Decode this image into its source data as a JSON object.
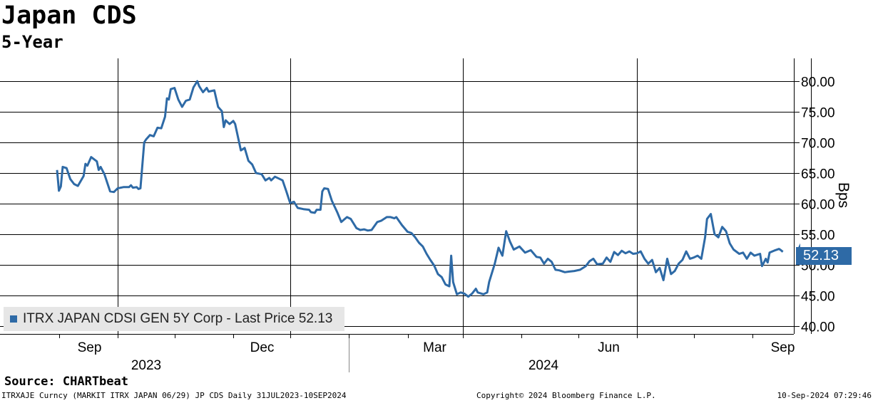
{
  "header": {
    "title": "Japan CDS",
    "subtitle": "5-Year"
  },
  "legend": {
    "text": "ITRX JAPAN CDSI GEN 5Y Corp - Last Price 52.13",
    "color": "#2e6aa6"
  },
  "last_price_label": "52.13",
  "source": "Source: CHARTbeat",
  "footer": {
    "left": "ITRXAJE Curncy (MARKIT ITRX JAPAN 06/29) JP CDS  Daily 31JUL2023-10SEP2024",
    "center": "Copyright© 2024 Bloomberg Finance L.P.",
    "right": "10-Sep-2024 07:29:46"
  },
  "chart_data": {
    "type": "line",
    "title": "Japan CDS",
    "subtitle": "5-Year",
    "ylabel": "Bps",
    "xlabel": "",
    "ylim": [
      39,
      83
    ],
    "yticks": [
      "80.00",
      "75.00",
      "70.00",
      "65.00",
      "60.00",
      "55.00",
      "50.00",
      "45.00",
      "40.00"
    ],
    "ytick_values": [
      80,
      75,
      70,
      65,
      60,
      55,
      50,
      45,
      40
    ],
    "xlim": [
      "2023-07-31",
      "2024-09-10"
    ],
    "xticks": [
      {
        "label": "Sep",
        "date": "2023-09-01"
      },
      {
        "label": "Dec",
        "date": "2023-12-01"
      },
      {
        "label": "Mar",
        "date": "2024-03-01"
      },
      {
        "label": "Jun",
        "date": "2024-06-01"
      },
      {
        "label": "Sep",
        "date": "2024-09-01"
      }
    ],
    "year_labels": [
      "2023",
      "2024"
    ],
    "grid": true,
    "legend_position": "bottom-left",
    "line_color": "#2e6aa6",
    "series": [
      {
        "name": "ITRX JAPAN CDSI GEN 5Y Corp - Last Price",
        "last": 52.13,
        "points": [
          [
            "2023-07-31",
            65.5
          ],
          [
            "2023-08-01",
            62.1
          ],
          [
            "2023-08-02",
            62.8
          ],
          [
            "2023-08-03",
            66.0
          ],
          [
            "2023-08-05",
            65.8
          ],
          [
            "2023-08-07",
            64.0
          ],
          [
            "2023-08-09",
            63.2
          ],
          [
            "2023-08-11",
            62.9
          ],
          [
            "2023-08-14",
            64.5
          ],
          [
            "2023-08-15",
            66.5
          ],
          [
            "2023-08-16",
            66.2
          ],
          [
            "2023-08-18",
            67.6
          ],
          [
            "2023-08-21",
            66.9
          ],
          [
            "2023-08-22",
            65.5
          ],
          [
            "2023-08-23",
            66.0
          ],
          [
            "2023-08-25",
            64.8
          ],
          [
            "2023-08-28",
            62.0
          ],
          [
            "2023-08-30",
            61.9
          ],
          [
            "2023-09-01",
            62.5
          ],
          [
            "2023-09-04",
            62.7
          ],
          [
            "2023-09-07",
            62.7
          ],
          [
            "2023-09-08",
            63.0
          ],
          [
            "2023-09-09",
            62.6
          ],
          [
            "2023-09-11",
            62.7
          ],
          [
            "2023-09-12",
            62.4
          ],
          [
            "2023-09-13",
            62.5
          ],
          [
            "2023-09-15",
            70.0
          ],
          [
            "2023-09-16",
            70.5
          ],
          [
            "2023-09-18",
            71.2
          ],
          [
            "2023-09-20",
            71.0
          ],
          [
            "2023-09-22",
            72.4
          ],
          [
            "2023-09-24",
            72.3
          ],
          [
            "2023-09-26",
            74.2
          ],
          [
            "2023-09-27",
            77.2
          ],
          [
            "2023-09-28",
            77.0
          ],
          [
            "2023-09-29",
            78.7
          ],
          [
            "2023-10-01",
            78.9
          ],
          [
            "2023-10-03",
            77.0
          ],
          [
            "2023-10-05",
            75.8
          ],
          [
            "2023-10-07",
            76.8
          ],
          [
            "2023-10-09",
            77.0
          ],
          [
            "2023-10-11",
            79.0
          ],
          [
            "2023-10-13",
            80.0
          ],
          [
            "2023-10-14",
            79.2
          ],
          [
            "2023-10-16",
            78.2
          ],
          [
            "2023-10-18",
            78.9
          ],
          [
            "2023-10-19",
            78.3
          ],
          [
            "2023-10-22",
            78.5
          ],
          [
            "2023-10-24",
            75.8
          ],
          [
            "2023-10-26",
            75.1
          ],
          [
            "2023-10-27",
            72.5
          ],
          [
            "2023-10-28",
            73.6
          ],
          [
            "2023-10-30",
            73.0
          ],
          [
            "2023-11-01",
            73.5
          ],
          [
            "2023-11-02",
            73.0
          ],
          [
            "2023-11-05",
            68.7
          ],
          [
            "2023-11-07",
            69.1
          ],
          [
            "2023-11-09",
            67.0
          ],
          [
            "2023-11-11",
            66.4
          ],
          [
            "2023-11-13",
            65.0
          ],
          [
            "2023-11-16",
            64.8
          ],
          [
            "2023-11-18",
            63.8
          ],
          [
            "2023-11-20",
            64.2
          ],
          [
            "2023-11-21",
            63.8
          ],
          [
            "2023-11-23",
            64.4
          ],
          [
            "2023-11-25",
            64.1
          ],
          [
            "2023-11-27",
            63.8
          ],
          [
            "2023-11-29",
            62.0
          ],
          [
            "2023-12-01",
            60.1
          ],
          [
            "2023-12-03",
            60.3
          ],
          [
            "2023-12-05",
            59.3
          ],
          [
            "2023-12-08",
            59.1
          ],
          [
            "2023-12-11",
            59.0
          ],
          [
            "2023-12-12",
            58.6
          ],
          [
            "2023-12-14",
            58.5
          ],
          [
            "2023-12-15",
            59.0
          ],
          [
            "2023-12-17",
            59.0
          ],
          [
            "2023-12-18",
            62.0
          ],
          [
            "2023-12-19",
            62.5
          ],
          [
            "2023-12-21",
            62.4
          ],
          [
            "2023-12-23",
            60.5
          ],
          [
            "2023-12-26",
            58.5
          ],
          [
            "2023-12-28",
            57.0
          ],
          [
            "2023-12-31",
            57.8
          ],
          [
            "2024-01-02",
            57.5
          ],
          [
            "2024-01-05",
            56.0
          ],
          [
            "2024-01-07",
            55.7
          ],
          [
            "2024-01-09",
            55.8
          ],
          [
            "2024-01-11",
            55.6
          ],
          [
            "2024-01-13",
            55.7
          ],
          [
            "2024-01-16",
            57.0
          ],
          [
            "2024-01-18",
            57.2
          ],
          [
            "2024-01-21",
            57.8
          ],
          [
            "2024-01-23",
            57.8
          ],
          [
            "2024-01-25",
            57.6
          ],
          [
            "2024-01-26",
            57.8
          ],
          [
            "2024-01-29",
            56.5
          ],
          [
            "2024-02-01",
            55.4
          ],
          [
            "2024-02-03",
            55.2
          ],
          [
            "2024-02-05",
            54.5
          ],
          [
            "2024-02-07",
            53.6
          ],
          [
            "2024-02-09",
            53.0
          ],
          [
            "2024-02-11",
            51.8
          ],
          [
            "2024-02-13",
            50.8
          ],
          [
            "2024-02-15",
            49.9
          ],
          [
            "2024-02-17",
            48.5
          ],
          [
            "2024-02-19",
            48.0
          ],
          [
            "2024-02-21",
            46.8
          ],
          [
            "2024-02-23",
            46.5
          ],
          [
            "2024-02-24",
            51.5
          ],
          [
            "2024-02-25",
            47.2
          ],
          [
            "2024-02-27",
            45.2
          ],
          [
            "2024-02-29",
            45.5
          ],
          [
            "2024-03-02",
            45.3
          ],
          [
            "2024-03-04",
            44.8
          ],
          [
            "2024-03-06",
            45.3
          ],
          [
            "2024-03-08",
            46.1
          ],
          [
            "2024-03-09",
            45.5
          ],
          [
            "2024-03-12",
            45.2
          ],
          [
            "2024-03-14",
            45.5
          ],
          [
            "2024-03-15",
            47.2
          ],
          [
            "2024-03-18",
            50.2
          ],
          [
            "2024-03-20",
            52.8
          ],
          [
            "2024-03-22",
            51.5
          ],
          [
            "2024-03-24",
            55.5
          ],
          [
            "2024-03-26",
            53.8
          ],
          [
            "2024-03-28",
            52.5
          ],
          [
            "2024-03-31",
            53.0
          ],
          [
            "2024-04-03",
            52.0
          ],
          [
            "2024-04-06",
            52.4
          ],
          [
            "2024-04-09",
            51.3
          ],
          [
            "2024-04-11",
            51.2
          ],
          [
            "2024-04-13",
            50.2
          ],
          [
            "2024-04-15",
            51.0
          ],
          [
            "2024-04-17",
            50.5
          ],
          [
            "2024-04-19",
            49.2
          ],
          [
            "2024-04-21",
            49.1
          ],
          [
            "2024-04-24",
            48.8
          ],
          [
            "2024-04-26",
            48.9
          ],
          [
            "2024-04-29",
            49.0
          ],
          [
            "2024-05-02",
            49.2
          ],
          [
            "2024-05-05",
            49.8
          ],
          [
            "2024-05-07",
            50.6
          ],
          [
            "2024-05-09",
            51.0
          ],
          [
            "2024-05-11",
            50.1
          ],
          [
            "2024-05-14",
            50.2
          ],
          [
            "2024-05-16",
            51.2
          ],
          [
            "2024-05-18",
            50.5
          ],
          [
            "2024-05-20",
            52.1
          ],
          [
            "2024-05-22",
            51.6
          ],
          [
            "2024-05-24",
            52.3
          ],
          [
            "2024-05-26",
            51.9
          ],
          [
            "2024-05-28",
            52.2
          ],
          [
            "2024-05-30",
            51.8
          ],
          [
            "2024-06-01",
            51.9
          ],
          [
            "2024-06-03",
            52.2
          ],
          [
            "2024-06-05",
            51.0
          ],
          [
            "2024-06-07",
            50.2
          ],
          [
            "2024-06-09",
            50.8
          ],
          [
            "2024-06-11",
            48.8
          ],
          [
            "2024-06-13",
            49.5
          ],
          [
            "2024-06-15",
            47.5
          ],
          [
            "2024-06-17",
            51.0
          ],
          [
            "2024-06-19",
            48.5
          ],
          [
            "2024-06-21",
            49.0
          ],
          [
            "2024-06-23",
            50.2
          ],
          [
            "2024-06-25",
            50.8
          ],
          [
            "2024-06-27",
            52.2
          ],
          [
            "2024-06-29",
            51.0
          ],
          [
            "2024-07-01",
            51.2
          ],
          [
            "2024-07-03",
            51.5
          ],
          [
            "2024-07-05",
            51.0
          ],
          [
            "2024-07-07",
            54.5
          ],
          [
            "2024-07-08",
            57.5
          ],
          [
            "2024-07-10",
            58.3
          ],
          [
            "2024-07-12",
            55.0
          ],
          [
            "2024-07-14",
            54.5
          ],
          [
            "2024-07-16",
            56.2
          ],
          [
            "2024-07-18",
            55.5
          ],
          [
            "2024-07-20",
            53.5
          ],
          [
            "2024-07-22",
            52.5
          ],
          [
            "2024-07-25",
            51.8
          ],
          [
            "2024-07-27",
            52.0
          ],
          [
            "2024-07-29",
            51.0
          ],
          [
            "2024-07-31",
            52.0
          ],
          [
            "2024-08-02",
            51.5
          ],
          [
            "2024-08-05",
            51.8
          ],
          [
            "2024-08-06",
            49.8
          ],
          [
            "2024-08-08",
            51.0
          ],
          [
            "2024-08-09",
            50.4
          ],
          [
            "2024-08-10",
            52.0
          ],
          [
            "2024-08-13",
            52.4
          ],
          [
            "2024-08-15",
            52.6
          ],
          [
            "2024-08-16",
            52.4
          ],
          [
            "2024-08-17",
            52.13
          ]
        ]
      }
    ]
  }
}
